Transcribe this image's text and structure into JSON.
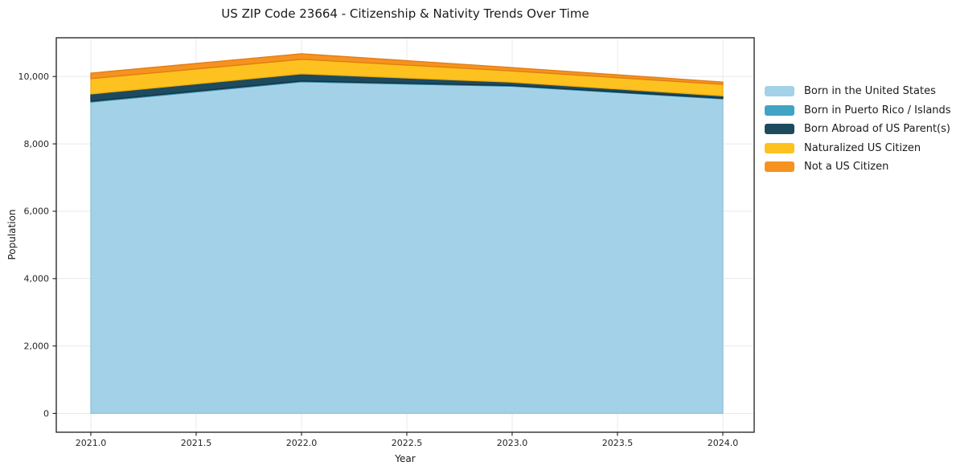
{
  "chart_data": {
    "type": "area",
    "stacked": true,
    "title": "US ZIP Code 23664 - Citizenship & Nativity Trends Over Time",
    "xlabel": "Year",
    "ylabel": "Population",
    "x": [
      2021,
      2022,
      2023,
      2024
    ],
    "series": [
      {
        "name": "Born in the United States",
        "color": "#a3d2e8",
        "edge": "#8cc0d8",
        "values": [
          9240,
          9840,
          9710,
          9335
        ]
      },
      {
        "name": "Born in Puerto Rico / Islands",
        "color": "#41a3c4",
        "edge": "#2d8aa8",
        "values": [
          25,
          25,
          20,
          20
        ]
      },
      {
        "name": "Born Abroad of US Parent(s)",
        "color": "#1e4a5e",
        "edge": "#14303f",
        "values": [
          215,
          215,
          100,
          70
        ]
      },
      {
        "name": "Naturalized US Citizen",
        "color": "#fdc21f",
        "edge": "#eead10",
        "values": [
          455,
          430,
          335,
          340
        ]
      },
      {
        "name": "Not a US Citizen",
        "color": "#f5931e",
        "edge": "#e07c15",
        "values": [
          165,
          165,
          100,
          70
        ]
      }
    ],
    "totals": [
      10100,
      10675,
      10265,
      9835
    ],
    "xticks": {
      "values": [
        2021.0,
        2021.5,
        2022.0,
        2022.5,
        2023.0,
        2023.5,
        2024.0
      ],
      "labels": [
        "2021.0",
        "2021.5",
        "2022.0",
        "2022.5",
        "2023.0",
        "2023.5",
        "2024.0"
      ]
    },
    "yticks": {
      "values": [
        0,
        2000,
        4000,
        6000,
        8000,
        10000
      ],
      "labels": [
        "0",
        "2,000",
        "4,000",
        "6,000",
        "8,000",
        "10,000"
      ]
    },
    "xlim": [
      2020.836,
      2024.149
    ],
    "ylim": [
      -560,
      11150
    ],
    "grid": true,
    "legend_position": "right-outside",
    "colors": {
      "background": "#ffffff",
      "grid": "#e9e9ec",
      "frame": "#1c1c1c",
      "tick_text": "#262626"
    }
  }
}
